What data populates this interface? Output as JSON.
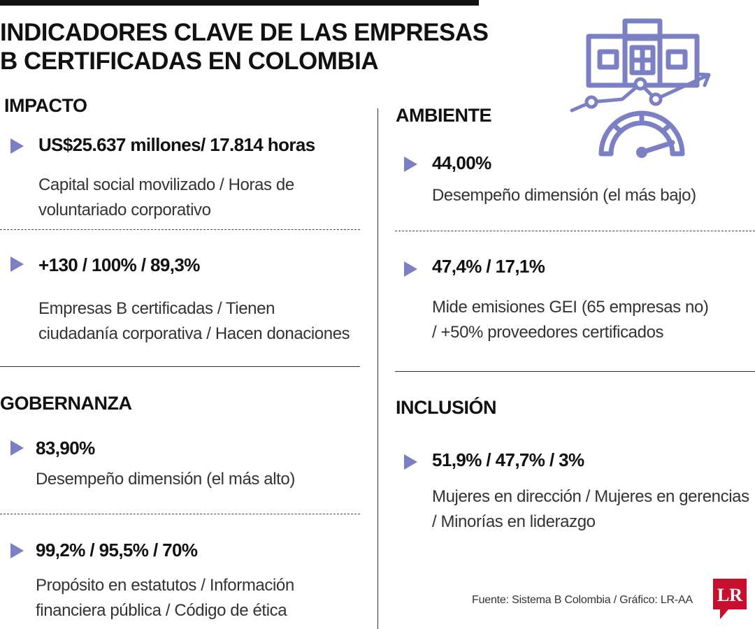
{
  "title": "INDICADORES CLAVE DE LAS EMPRESAS B CERTIFICADAS EN COLOMBIA",
  "accent_color": "#7b7fc4",
  "illustration_icon": "building-growth-gauge-icon",
  "sections": {
    "impacto": {
      "title": "IMPACTO",
      "items": [
        {
          "value": "US$25.637 millones/ 17.814 horas",
          "desc": "Capital social movilizado / Horas de\nvoluntariado corporativo"
        },
        {
          "value": "+130 / 100% / 89,3%",
          "desc": "Empresas B certificadas / Tienen\nciudadanía corporativa / Hacen donaciones"
        }
      ]
    },
    "ambiente": {
      "title": "AMBIENTE",
      "items": [
        {
          "value": "44,00%",
          "desc": "Desempeño dimensión (el más bajo)"
        },
        {
          "value": "47,4% / 17,1%",
          "desc": "Mide emisiones GEI (65 empresas no)\n / +50% proveedores certificados"
        }
      ]
    },
    "gobernanza": {
      "title": "GOBERNANZA",
      "items": [
        {
          "value": "83,90%",
          "desc": "Desempeño dimensión (el más alto)"
        },
        {
          "value": "99,2% / 95,5% / 70%",
          "desc": "Propósito en estatutos / Información\nfinanciera pública / Código de ética"
        }
      ]
    },
    "inclusion": {
      "title": "INCLUSIÓN",
      "items": [
        {
          "value": "51,9% / 47,7% / 3%",
          "desc": "Mujeres en dirección / Mujeres en gerencias\n / Minorías en liderazgo"
        }
      ]
    }
  },
  "source": "Fuente: Sistema B Colombia / Gráfico: LR-AA",
  "logo": {
    "text": "LR",
    "color": "#c8102e",
    "icon": "lr-logo-icon"
  }
}
